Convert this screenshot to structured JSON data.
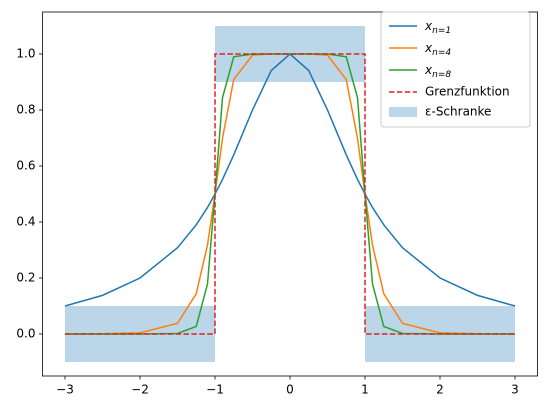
{
  "chart_data": {
    "type": "line",
    "x": [
      -3,
      -2.5,
      -2,
      -1.5,
      -1.25,
      -1.1,
      -1,
      -0.9,
      -0.75,
      -0.5,
      -0.25,
      0,
      0.25,
      0.5,
      0.75,
      0.9,
      1,
      1.1,
      1.25,
      1.5,
      2,
      2.5,
      3
    ],
    "series": [
      {
        "name": "x",
        "subscript": "n=1",
        "color": "#1f77b4",
        "values": [
          0.1,
          0.138,
          0.2,
          0.308,
          0.39,
          0.452,
          0.5,
          0.552,
          0.64,
          0.8,
          0.941,
          1,
          0.941,
          0.8,
          0.64,
          0.552,
          0.5,
          0.452,
          0.39,
          0.308,
          0.2,
          0.138,
          0.1
        ]
      },
      {
        "name": "x",
        "subscript": "n=4",
        "color": "#ff7f0e",
        "values": [
          0,
          0.001,
          0.004,
          0.038,
          0.144,
          0.318,
          0.5,
          0.699,
          0.909,
          0.996,
          1,
          1,
          1,
          0.996,
          0.909,
          0.699,
          0.5,
          0.318,
          0.144,
          0.038,
          0.004,
          0.001,
          0
        ]
      },
      {
        "name": "x",
        "subscript": "n=8",
        "color": "#2ca02c",
        "values": [
          0,
          0,
          0,
          0.002,
          0.027,
          0.179,
          0.5,
          0.844,
          0.99,
          1,
          1,
          1,
          1,
          1,
          0.99,
          0.844,
          0.5,
          0.179,
          0.027,
          0.002,
          0,
          0,
          0
        ]
      }
    ],
    "limit": {
      "name": "Grenzfunktion",
      "color": "#d62728",
      "x": [
        -3,
        -1,
        -1,
        1,
        1,
        3
      ],
      "values": [
        0,
        0,
        1,
        1,
        0,
        0
      ]
    },
    "band": {
      "name": "ε-Schranke",
      "color": "#1f77b4",
      "rects": [
        {
          "x": [
            -3,
            -1
          ],
          "y": [
            -0.1,
            0.1
          ]
        },
        {
          "x": [
            -1,
            1
          ],
          "y": [
            0.9,
            1.1
          ]
        },
        {
          "x": [
            1,
            3
          ],
          "y": [
            -0.1,
            0.1
          ]
        }
      ]
    },
    "xlim": [
      -3.3,
      3.3
    ],
    "ylim": [
      -0.15,
      1.15
    ],
    "xticks": [
      {
        "value": -3,
        "label": "−3"
      },
      {
        "value": -2,
        "label": "−2"
      },
      {
        "value": -1,
        "label": "−1"
      },
      0,
      1,
      2,
      3
    ],
    "yticks": [
      {
        "value": 0,
        "label": "0.0"
      },
      {
        "value": 0.2,
        "label": "0.2"
      },
      {
        "value": 0.4,
        "label": "0.4"
      },
      {
        "value": 0.6,
        "label": "0.6"
      },
      {
        "value": 0.8,
        "label": "0.8"
      },
      {
        "value": 1,
        "label": "1.0"
      }
    ],
    "legend": "upper right"
  }
}
